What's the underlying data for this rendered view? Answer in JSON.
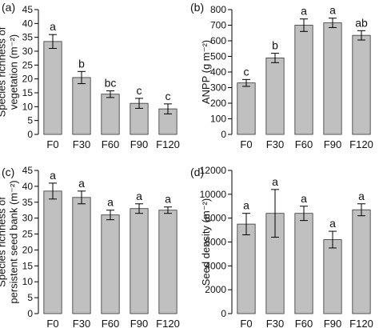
{
  "chart_data": [
    {
      "type": "bar",
      "panel_label": "(a)",
      "ylabel_lines": [
        "Species richness of",
        "vegetation (m⁻²)"
      ],
      "categories": [
        "F0",
        "F30",
        "F60",
        "F90",
        "F120"
      ],
      "values": [
        33.5,
        20.5,
        14.5,
        11.2,
        9.2
      ],
      "errors": [
        2.5,
        2.2,
        1.2,
        1.8,
        1.8
      ],
      "significance": [
        "a",
        "b",
        "bc",
        "c",
        "c"
      ],
      "ylim": [
        0,
        45
      ],
      "yticks": [
        0,
        5,
        10,
        15,
        20,
        25,
        30,
        35,
        40,
        45
      ],
      "bar_color": "#c0c0c0"
    },
    {
      "type": "bar",
      "panel_label": "(b)",
      "ylabel_lines": [
        "ANPP (g m⁻²)"
      ],
      "categories": [
        "F0",
        "F30",
        "F60",
        "F90",
        "F120"
      ],
      "values": [
        330,
        490,
        700,
        715,
        635
      ],
      "errors": [
        22,
        30,
        40,
        30,
        30
      ],
      "significance": [
        "c",
        "b",
        "a",
        "a",
        "ab"
      ],
      "ylim": [
        0,
        800
      ],
      "yticks": [
        0,
        100,
        200,
        300,
        400,
        500,
        600,
        700,
        800
      ],
      "bar_color": "#c0c0c0"
    },
    {
      "type": "bar",
      "panel_label": "(c)",
      "ylabel_lines": [
        "Species richness of",
        "persistent seed bank (m⁻²)"
      ],
      "categories": [
        "F0",
        "F30",
        "F60",
        "F90",
        "F120"
      ],
      "values": [
        38.5,
        36.5,
        31.0,
        33.0,
        32.5
      ],
      "errors": [
        2.5,
        2.0,
        1.5,
        1.5,
        1.0
      ],
      "significance": [
        "a",
        "a",
        "a",
        "a",
        "a"
      ],
      "ylim": [
        0,
        45
      ],
      "yticks": [
        0,
        5,
        10,
        15,
        20,
        25,
        30,
        35,
        40,
        45
      ],
      "bar_color": "#c0c0c0"
    },
    {
      "type": "bar",
      "panel_label": "(d)",
      "ylabel_lines": [
        "Seed density (m⁻²)"
      ],
      "categories": [
        "F0",
        "F30",
        "F60",
        "F90",
        "F120"
      ],
      "values": [
        7500,
        8400,
        8400,
        6200,
        8700
      ],
      "errors": [
        900,
        2000,
        600,
        700,
        500
      ],
      "significance": [
        "a",
        "a",
        "a",
        "a",
        "a"
      ],
      "ylim": [
        0,
        12000
      ],
      "yticks": [
        0,
        2000,
        4000,
        6000,
        8000,
        10000,
        12000
      ],
      "bar_color": "#c0c0c0"
    }
  ]
}
